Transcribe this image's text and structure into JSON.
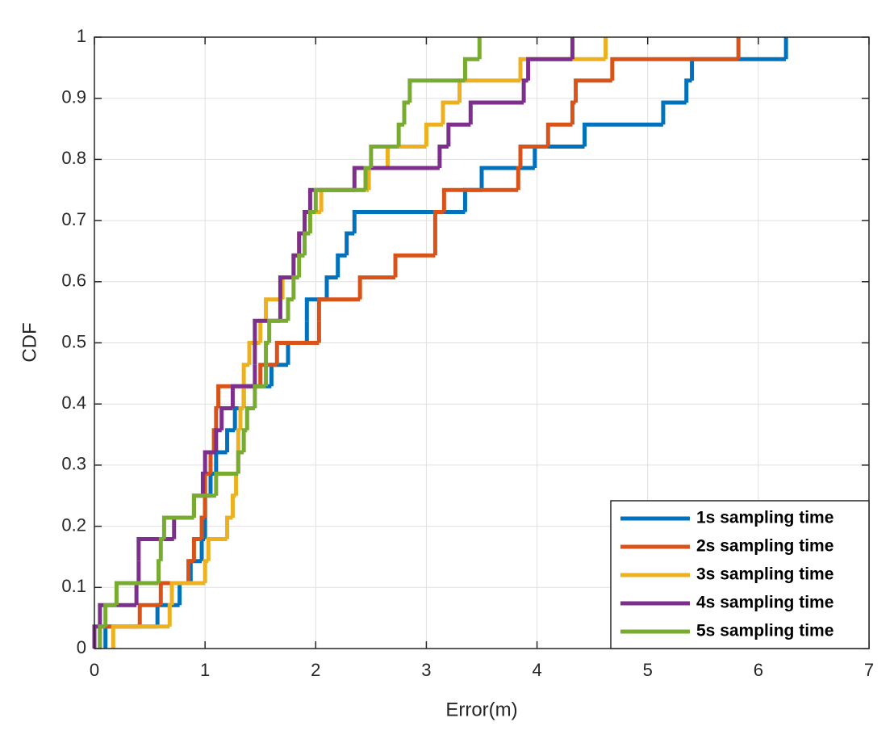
{
  "chart_data": {
    "type": "step",
    "xlabel": "Error(m)",
    "ylabel": "CDF",
    "xlim": [
      0,
      7
    ],
    "ylim": [
      0,
      1
    ],
    "xticks": [
      0,
      1,
      2,
      3,
      4,
      5,
      6,
      7
    ],
    "yticks": [
      0,
      0.1,
      0.2,
      0.3,
      0.4,
      0.5,
      0.6,
      0.7,
      0.8,
      0.9,
      1
    ],
    "grid": true,
    "legend": "lower right",
    "series": [
      {
        "name": "1s sampling time",
        "color": "#0072bd",
        "x": [
          0.1,
          0.57,
          0.77,
          0.87,
          0.97,
          1.0,
          1.0,
          1.05,
          1.1,
          1.2,
          1.27,
          1.35,
          1.6,
          1.75,
          1.92,
          1.92,
          2.1,
          2.2,
          2.28,
          2.35,
          3.35,
          3.5,
          3.98,
          4.43,
          5.14,
          5.35,
          5.4,
          6.25
        ],
        "values": [
          0.036,
          0.071,
          0.107,
          0.143,
          0.179,
          0.214,
          0.25,
          0.286,
          0.321,
          0.357,
          0.393,
          0.429,
          0.464,
          0.5,
          0.536,
          0.571,
          0.607,
          0.643,
          0.679,
          0.714,
          0.75,
          0.786,
          0.821,
          0.857,
          0.893,
          0.929,
          0.964,
          1
        ]
      },
      {
        "name": "2s sampling time",
        "color": "#d95319",
        "x": [
          0.05,
          0.41,
          0.6,
          0.85,
          0.9,
          0.97,
          1.0,
          1.0,
          1.05,
          1.08,
          1.1,
          1.12,
          1.5,
          1.65,
          2.03,
          2.03,
          2.4,
          2.72,
          3.08,
          3.08,
          3.16,
          3.83,
          3.85,
          4.1,
          4.32,
          4.35,
          4.68,
          5.82
        ],
        "values": [
          0.036,
          0.071,
          0.107,
          0.143,
          0.179,
          0.214,
          0.25,
          0.286,
          0.321,
          0.357,
          0.393,
          0.429,
          0.464,
          0.5,
          0.536,
          0.571,
          0.607,
          0.643,
          0.679,
          0.714,
          0.75,
          0.786,
          0.821,
          0.857,
          0.893,
          0.929,
          0.964,
          1
        ]
      },
      {
        "name": "3s sampling time",
        "color": "#edb120",
        "x": [
          0.17,
          0.68,
          0.7,
          1.0,
          1.03,
          1.2,
          1.25,
          1.28,
          1.3,
          1.3,
          1.32,
          1.35,
          1.35,
          1.4,
          1.5,
          1.55,
          1.7,
          1.8,
          1.85,
          1.9,
          2.05,
          2.48,
          2.65,
          3.0,
          3.15,
          3.3,
          3.85,
          4.62
        ],
        "values": [
          0.036,
          0.071,
          0.107,
          0.143,
          0.179,
          0.214,
          0.25,
          0.286,
          0.321,
          0.357,
          0.393,
          0.429,
          0.464,
          0.5,
          0.536,
          0.571,
          0.607,
          0.643,
          0.679,
          0.714,
          0.75,
          0.786,
          0.821,
          0.857,
          0.893,
          0.929,
          0.964,
          1
        ]
      },
      {
        "name": "4s sampling time",
        "color": "#7e2f8e",
        "x": [
          0.0,
          0.05,
          0.38,
          0.4,
          0.4,
          0.72,
          0.9,
          0.98,
          1.0,
          1.1,
          1.15,
          1.25,
          1.45,
          1.45,
          1.45,
          1.68,
          1.68,
          1.8,
          1.85,
          1.9,
          1.95,
          2.35,
          3.12,
          3.2,
          3.4,
          3.88,
          3.92,
          4.32
        ],
        "values": [
          0.036,
          0.071,
          0.107,
          0.143,
          0.179,
          0.214,
          0.25,
          0.286,
          0.321,
          0.357,
          0.393,
          0.429,
          0.464,
          0.5,
          0.536,
          0.571,
          0.607,
          0.643,
          0.679,
          0.714,
          0.75,
          0.786,
          0.821,
          0.857,
          0.893,
          0.929,
          0.964,
          1
        ]
      },
      {
        "name": "5s sampling time",
        "color": "#77ac30",
        "x": [
          0.05,
          0.1,
          0.2,
          0.58,
          0.6,
          0.63,
          0.9,
          1.1,
          1.3,
          1.35,
          1.38,
          1.45,
          1.55,
          1.55,
          1.58,
          1.75,
          1.8,
          1.85,
          1.9,
          1.95,
          2.0,
          2.45,
          2.5,
          2.75,
          2.8,
          2.85,
          3.35,
          3.48
        ],
        "values": [
          0.036,
          0.071,
          0.107,
          0.143,
          0.179,
          0.214,
          0.25,
          0.286,
          0.321,
          0.357,
          0.393,
          0.429,
          0.464,
          0.5,
          0.536,
          0.571,
          0.607,
          0.643,
          0.679,
          0.714,
          0.75,
          0.786,
          0.821,
          0.857,
          0.893,
          0.929,
          0.964,
          1
        ]
      }
    ]
  }
}
